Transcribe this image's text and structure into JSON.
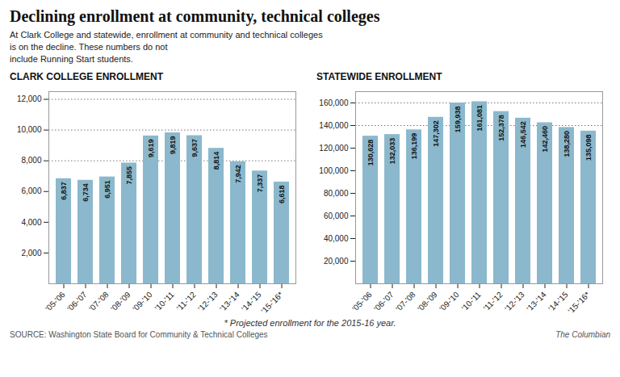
{
  "title": "Declining enrollment at community, technical colleges",
  "subtitle": "At Clark College and statewide, enrollment at community and technical colleges\nis on the decline. These numbers do not\ninclude Running Start students.",
  "annotations": [
    "* Projected enrollment for the 2015-16 year.",
    "SOURCE: Washington State Board for Community & Technical Colleges",
    "The Columbian"
  ],
  "chart_data": [
    {
      "type": "bar",
      "title": "CLARK COLLEGE ENROLLMENT",
      "categories": [
        "'05-'06",
        "'06-'07",
        "'07-'08",
        "'08-'09",
        "'09-'10",
        "'10-'11",
        "'11-'12",
        "'12-'13",
        "'13-'14",
        "'14-'15",
        "'15-'16*"
      ],
      "values": [
        6837,
        6734,
        6951,
        7855,
        9619,
        9819,
        9637,
        8814,
        7942,
        7337,
        6618
      ],
      "value_labels": [
        "6,837",
        "6,734",
        "6,951",
        "7,855",
        "9,619",
        "9,819",
        "9,637",
        "8,814",
        "7,942",
        "7,337",
        "6,618"
      ],
      "data_labels": true,
      "color": "#8BB8CC",
      "ylim": [
        0,
        12500
      ],
      "yticks": [
        {
          "value": 2000,
          "label": "2,000"
        },
        {
          "value": 4000,
          "label": "4,000"
        },
        {
          "value": 6000,
          "label": "6,000"
        },
        {
          "value": 8000,
          "label": "8,000"
        },
        {
          "value": 10000,
          "label": "10,000"
        },
        {
          "value": 12000,
          "label": "12,000"
        }
      ],
      "reference_lines": [
        12000,
        10000,
        8000
      ]
    },
    {
      "type": "bar",
      "title": "STATEWIDE ENROLLMENT",
      "categories": [
        "'05-'06",
        "'06-'07",
        "'07-'08",
        "'08-'09",
        "'09-'10",
        "'10-'11",
        "'11-'12",
        "'12-'13",
        "'13-'14",
        "'14-'15",
        "'15-'16*"
      ],
      "values": [
        130628,
        132033,
        136199,
        147302,
        159938,
        161081,
        152378,
        146542,
        142460,
        138280,
        135098
      ],
      "value_labels": [
        "130,628",
        "132,033",
        "136,199",
        "147,302",
        "159,938",
        "161,081",
        "152,378",
        "146,542",
        "142,460",
        "138,280",
        "135,098"
      ],
      "data_labels": true,
      "color": "#8BB8CC",
      "ylim": [
        0,
        170000
      ],
      "yticks": [
        {
          "value": 20000,
          "label": "20,000"
        },
        {
          "value": 40000,
          "label": "40,000"
        },
        {
          "value": 60000,
          "label": "60,000"
        },
        {
          "value": 80000,
          "label": "80,000"
        },
        {
          "value": 100000,
          "label": "100,000"
        },
        {
          "value": 120000,
          "label": "120,000"
        },
        {
          "value": 140000,
          "label": "140,000"
        },
        {
          "value": 160000,
          "label": "160,000"
        }
      ],
      "reference_lines": [
        160000,
        140000
      ]
    }
  ]
}
